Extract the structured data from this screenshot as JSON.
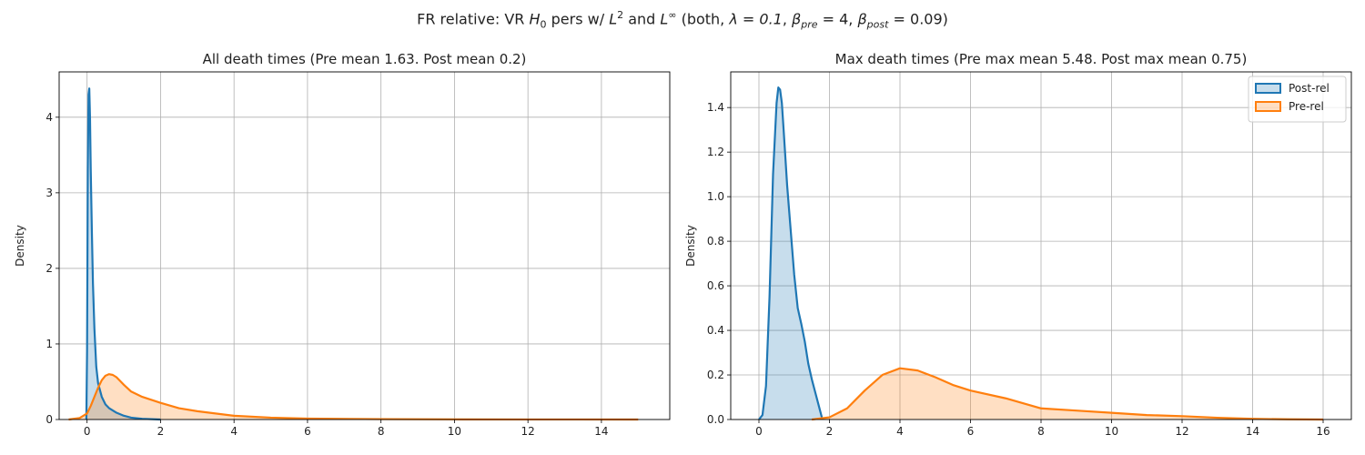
{
  "suptitle": {
    "prefix": "FR relative: VR ",
    "h": "H",
    "h_sub": "0",
    "mid1": " pers w/ ",
    "l2": "L",
    "l2_sup": "2",
    "mid2": " and ",
    "linf": "L",
    "linf_sup": "∞",
    "mid3": " (both, ",
    "lambda": "λ = 0.1",
    "beta_pre_sym": "β",
    "beta_pre_sub": "pre",
    "beta_pre_val": " = 4",
    "beta_post_sym": "β",
    "beta_post_sub": "post",
    "beta_post_val": " = 0.09",
    "close": ")"
  },
  "colors": {
    "post": "#1f77b4",
    "pre": "#ff7f0e",
    "grid": "#b0b0b0"
  },
  "chart_data": [
    {
      "type": "area",
      "title": "All death times (Pre mean 1.63. Post mean 0.2)",
      "xlabel": "",
      "ylabel": "Density",
      "xlim": [
        -0.76,
        15.86
      ],
      "ylim": [
        0,
        4.6
      ],
      "xticks": [
        0,
        2,
        4,
        6,
        8,
        10,
        12,
        14
      ],
      "yticks": [
        0,
        1,
        2,
        3,
        4
      ],
      "grid": true,
      "legend": null,
      "series": [
        {
          "name": "Post-rel",
          "x": [
            -0.02,
            0.0,
            0.02,
            0.04,
            0.06,
            0.08,
            0.1,
            0.13,
            0.16,
            0.2,
            0.25,
            0.3,
            0.4,
            0.5,
            0.6,
            0.8,
            1.0,
            1.2,
            1.5,
            2.0
          ],
          "y": [
            0,
            0.9,
            3.3,
            4.3,
            4.38,
            4.0,
            3.3,
            2.5,
            1.8,
            1.2,
            0.7,
            0.48,
            0.3,
            0.2,
            0.15,
            0.09,
            0.05,
            0.025,
            0.01,
            0
          ]
        },
        {
          "name": "Pre-rel",
          "x": [
            -0.5,
            -0.2,
            0.0,
            0.1,
            0.2,
            0.3,
            0.4,
            0.5,
            0.6,
            0.7,
            0.8,
            0.9,
            1.0,
            1.2,
            1.5,
            2.0,
            2.5,
            3.0,
            4.0,
            5.0,
            6.0,
            8.0,
            10.0,
            12.0,
            15.0
          ],
          "y": [
            0,
            0.02,
            0.08,
            0.18,
            0.3,
            0.42,
            0.52,
            0.58,
            0.6,
            0.59,
            0.56,
            0.51,
            0.46,
            0.37,
            0.3,
            0.22,
            0.15,
            0.11,
            0.05,
            0.025,
            0.012,
            0.005,
            0.002,
            0.001,
            0
          ]
        }
      ]
    },
    {
      "type": "area",
      "title": "Max death times (Pre max mean 5.48. Post max mean 0.75)",
      "xlabel": "",
      "ylabel": "Density",
      "xlim": [
        -0.8,
        16.8
      ],
      "ylim": [
        0,
        1.56
      ],
      "xticks": [
        0,
        2,
        4,
        6,
        8,
        10,
        12,
        14,
        16
      ],
      "yticks": [
        0.0,
        0.2,
        0.4,
        0.6,
        0.8,
        1.0,
        1.2,
        1.4
      ],
      "grid": true,
      "legend": "top-right",
      "series": [
        {
          "name": "Post-rel",
          "x": [
            0.0,
            0.1,
            0.2,
            0.3,
            0.4,
            0.5,
            0.55,
            0.6,
            0.65,
            0.7,
            0.8,
            0.9,
            1.0,
            1.1,
            1.2,
            1.3,
            1.4,
            1.5,
            1.6,
            1.7,
            1.8
          ],
          "y": [
            0,
            0.02,
            0.15,
            0.55,
            1.1,
            1.42,
            1.49,
            1.48,
            1.42,
            1.3,
            1.05,
            0.85,
            0.65,
            0.5,
            0.43,
            0.35,
            0.25,
            0.18,
            0.12,
            0.06,
            0
          ]
        },
        {
          "name": "Pre-rel",
          "x": [
            1.5,
            2.0,
            2.5,
            3.0,
            3.5,
            4.0,
            4.5,
            5.0,
            5.5,
            6.0,
            7.0,
            8.0,
            9.0,
            10.0,
            11.0,
            12.0,
            13.0,
            14.0,
            15.0,
            16.0
          ],
          "y": [
            0,
            0.01,
            0.05,
            0.13,
            0.2,
            0.23,
            0.22,
            0.19,
            0.155,
            0.13,
            0.095,
            0.05,
            0.04,
            0.03,
            0.02,
            0.015,
            0.008,
            0.003,
            0.001,
            0
          ]
        }
      ]
    }
  ]
}
